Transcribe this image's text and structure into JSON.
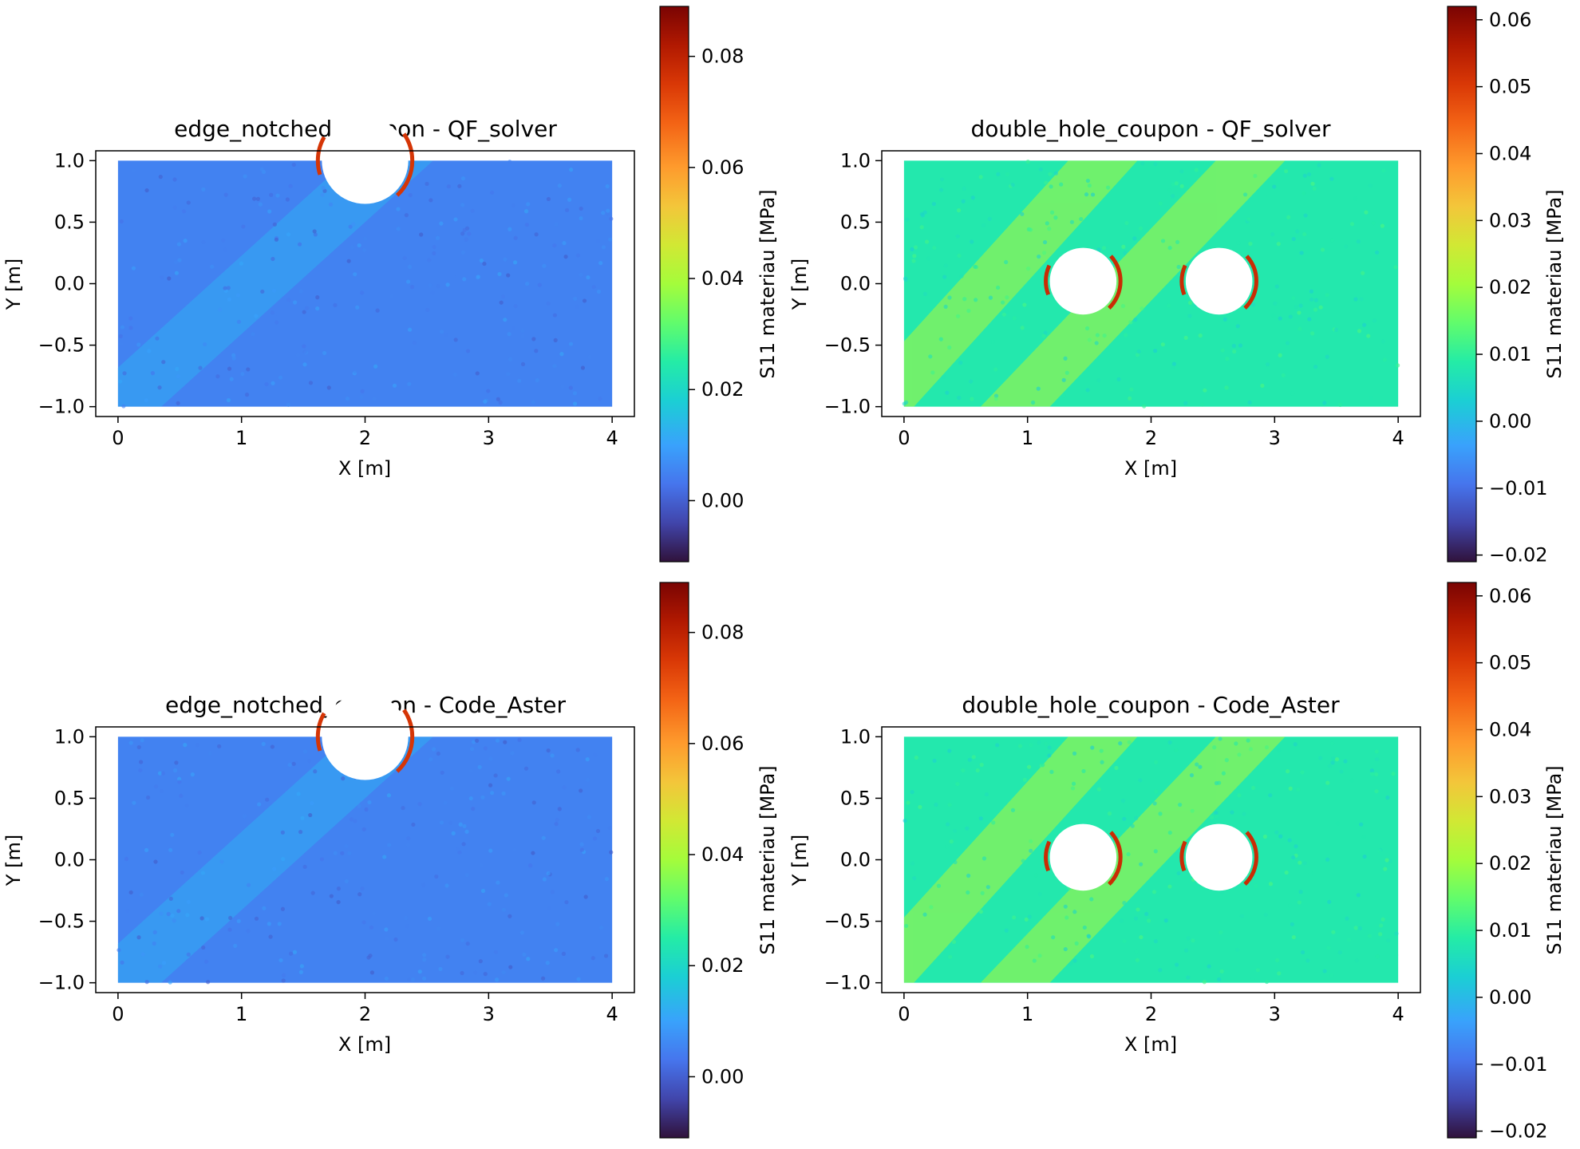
{
  "chart_data": [
    {
      "type": "scatter",
      "title": "edge_notched_coupon - QF_solver",
      "xlabel": "X [m]",
      "ylabel": "Y [m]",
      "xlim": [
        -0.18,
        4.18
      ],
      "ylim": [
        -1.08,
        1.08
      ],
      "xticks": [
        "0",
        "1",
        "2",
        "3",
        "4"
      ],
      "yticks": [
        "1.0",
        "0.5",
        "0.0",
        "−0.5",
        "−1.0"
      ],
      "colorbar": {
        "label": "S11 materiau [MPa]",
        "range": [
          -0.011,
          0.089
        ],
        "ticks": [
          "0.08",
          "0.06",
          "0.04",
          "0.02",
          "0.00"
        ],
        "tick_values": [
          0.08,
          0.06,
          0.04,
          0.02,
          0.0
        ],
        "colormap": "turbo"
      },
      "domain": {
        "x": [
          0,
          4
        ],
        "y": [
          -1,
          1
        ]
      },
      "holes": [
        {
          "cx": 2.0,
          "cy": 1.0,
          "r": 0.35
        }
      ],
      "stress_field": {
        "background": 0.005,
        "band_value": 0.012,
        "hotspot_max": 0.089
      }
    },
    {
      "type": "scatter",
      "title": "double_hole_coupon - QF_solver",
      "xlabel": "X [m]",
      "ylabel": "Y [m]",
      "xlim": [
        -0.18,
        4.18
      ],
      "ylim": [
        -1.08,
        1.08
      ],
      "xticks": [
        "0",
        "1",
        "2",
        "3",
        "4"
      ],
      "yticks": [
        "1.0",
        "0.5",
        "0.0",
        "−0.5",
        "−1.0"
      ],
      "colorbar": {
        "label": "S11 materiau [MPa]",
        "range": [
          -0.021,
          0.062
        ],
        "ticks": [
          "0.06",
          "0.05",
          "0.04",
          "0.03",
          "0.02",
          "0.01",
          "0.00",
          "−0.01",
          "−0.02"
        ],
        "tick_values": [
          0.06,
          0.05,
          0.04,
          0.03,
          0.02,
          0.01,
          0.0,
          -0.01,
          -0.02
        ],
        "colormap": "turbo"
      },
      "domain": {
        "x": [
          0,
          4
        ],
        "y": [
          -1,
          1
        ]
      },
      "holes": [
        {
          "cx": 1.45,
          "cy": 0.02,
          "r": 0.27
        },
        {
          "cx": 2.55,
          "cy": 0.02,
          "r": 0.27
        }
      ],
      "stress_field": {
        "background": 0.008,
        "band_value": 0.022,
        "hotspot_max": 0.062
      }
    },
    {
      "type": "scatter",
      "title": "edge_notched_coupon - Code_Aster",
      "xlabel": "X [m]",
      "ylabel": "Y [m]",
      "xlim": [
        -0.18,
        4.18
      ],
      "ylim": [
        -1.08,
        1.08
      ],
      "xticks": [
        "0",
        "1",
        "2",
        "3",
        "4"
      ],
      "yticks": [
        "1.0",
        "0.5",
        "0.0",
        "−0.5",
        "−1.0"
      ],
      "colorbar": {
        "label": "S11 materiau [MPa]",
        "range": [
          -0.011,
          0.089
        ],
        "ticks": [
          "0.08",
          "0.06",
          "0.04",
          "0.02",
          "0.00"
        ],
        "tick_values": [
          0.08,
          0.06,
          0.04,
          0.02,
          0.0
        ],
        "colormap": "turbo"
      },
      "domain": {
        "x": [
          0,
          4
        ],
        "y": [
          -1,
          1
        ]
      },
      "holes": [
        {
          "cx": 2.0,
          "cy": 1.0,
          "r": 0.35
        }
      ],
      "stress_field": {
        "background": 0.005,
        "band_value": 0.012,
        "hotspot_max": 0.089
      }
    },
    {
      "type": "scatter",
      "title": "double_hole_coupon - Code_Aster",
      "xlabel": "X [m]",
      "ylabel": "Y [m]",
      "xlim": [
        -0.18,
        4.18
      ],
      "ylim": [
        -1.08,
        1.08
      ],
      "xticks": [
        "0",
        "1",
        "2",
        "3",
        "4"
      ],
      "yticks": [
        "1.0",
        "0.5",
        "0.0",
        "−0.5",
        "−1.0"
      ],
      "colorbar": {
        "label": "S11 materiau [MPa]",
        "range": [
          -0.021,
          0.062
        ],
        "ticks": [
          "0.06",
          "0.05",
          "0.04",
          "0.03",
          "0.02",
          "0.01",
          "0.00",
          "−0.01",
          "−0.02"
        ],
        "tick_values": [
          0.06,
          0.05,
          0.04,
          0.03,
          0.02,
          0.01,
          0.0,
          -0.01,
          -0.02
        ],
        "colormap": "turbo"
      },
      "domain": {
        "x": [
          0,
          4
        ],
        "y": [
          -1,
          1
        ]
      },
      "holes": [
        {
          "cx": 1.45,
          "cy": 0.02,
          "r": 0.27
        },
        {
          "cx": 2.55,
          "cy": 0.02,
          "r": 0.27
        }
      ],
      "stress_field": {
        "background": 0.008,
        "band_value": 0.022,
        "hotspot_max": 0.062
      }
    }
  ]
}
